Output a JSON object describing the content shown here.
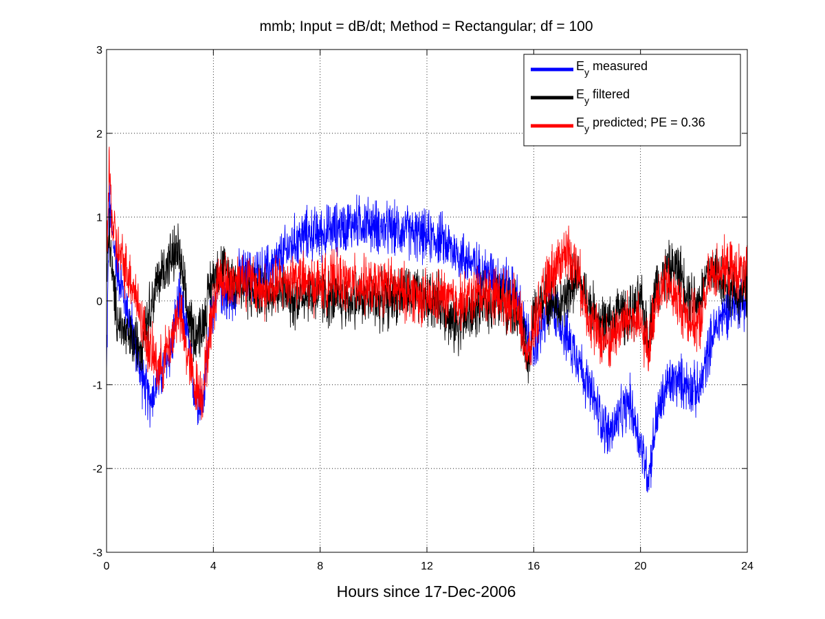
{
  "chart_data": {
    "type": "line",
    "title": "mmb; Input = dB/dt; Method = Rectangular; df = 100",
    "xlabel": "Hours since 17-Dec-2006",
    "ylabel": "",
    "xlim": [
      0,
      24
    ],
    "ylim": [
      -3,
      3
    ],
    "xticks": [
      0,
      4,
      8,
      12,
      16,
      20,
      24
    ],
    "yticks": [
      -3,
      -2,
      -1,
      0,
      1,
      2,
      3
    ],
    "xtick_labels": [
      "0",
      "4",
      "8",
      "12",
      "16",
      "20",
      "24"
    ],
    "ytick_labels": [
      "-3",
      "-2",
      "-1",
      "0",
      "1",
      "2",
      "3"
    ],
    "grid": true,
    "grid_style": "dotted",
    "legend_position": "top-right",
    "series": [
      {
        "name_main": "E",
        "name_sub": "y",
        "name_rest": " measured",
        "color": "#0000ff",
        "noise": 0.28,
        "x": [
          0,
          0.1,
          0.2,
          0.4,
          0.7,
          1.0,
          1.3,
          1.6,
          2.0,
          2.4,
          2.7,
          3.0,
          3.3,
          3.6,
          3.9,
          4.2,
          4.6,
          5.0,
          5.5,
          6.0,
          6.5,
          7.0,
          7.5,
          8.0,
          8.5,
          9.0,
          9.5,
          10.0,
          10.5,
          11.0,
          11.5,
          12.0,
          12.5,
          13.0,
          13.5,
          14.0,
          14.5,
          15.0,
          15.4,
          15.8,
          16.0,
          16.3,
          16.6,
          17.0,
          17.3,
          17.6,
          18.0,
          18.4,
          18.8,
          19.2,
          19.6,
          20.0,
          20.3,
          20.6,
          21.0,
          21.4,
          21.8,
          22.2,
          22.6,
          23.0,
          23.5,
          24.0
        ],
        "y": [
          -0.9,
          1.2,
          0.8,
          0.4,
          0.0,
          -0.4,
          -0.9,
          -1.2,
          -0.9,
          -0.6,
          0.0,
          -0.3,
          -1.1,
          -1.2,
          -0.2,
          0.2,
          0.0,
          0.3,
          0.3,
          0.35,
          0.5,
          0.7,
          0.8,
          0.8,
          0.85,
          0.9,
          0.95,
          0.9,
          0.85,
          0.85,
          0.8,
          0.75,
          0.75,
          0.6,
          0.5,
          0.35,
          0.3,
          0.2,
          0.0,
          -0.5,
          -0.6,
          -0.3,
          -0.1,
          -0.2,
          -0.5,
          -0.6,
          -1.0,
          -1.3,
          -1.6,
          -1.4,
          -1.2,
          -1.7,
          -2.1,
          -1.4,
          -1.0,
          -0.95,
          -1.0,
          -1.1,
          -0.5,
          -0.2,
          0.0,
          0.0
        ]
      },
      {
        "name_main": "E",
        "name_sub": "y",
        "name_rest": " filtered",
        "color": "#000000",
        "noise": 0.3,
        "x": [
          0,
          0.1,
          0.2,
          0.4,
          0.7,
          1.0,
          1.3,
          1.6,
          2.0,
          2.4,
          2.7,
          3.0,
          3.3,
          3.6,
          3.9,
          4.2,
          4.6,
          5.0,
          5.5,
          6.0,
          6.5,
          7.0,
          7.5,
          8.0,
          8.5,
          9.0,
          9.5,
          10.0,
          10.5,
          11.0,
          11.5,
          12.0,
          12.5,
          13.0,
          13.5,
          14.0,
          14.5,
          15.0,
          15.4,
          15.8,
          16.0,
          16.3,
          16.6,
          17.0,
          17.3,
          17.6,
          18.0,
          18.4,
          18.8,
          19.2,
          19.6,
          20.0,
          20.3,
          20.6,
          21.0,
          21.4,
          21.8,
          22.2,
          22.6,
          23.0,
          23.5,
          24.0
        ],
        "y": [
          0.2,
          0.9,
          0.3,
          -0.2,
          -0.4,
          -0.5,
          -0.5,
          -0.1,
          0.3,
          0.5,
          0.6,
          -0.1,
          -0.4,
          -0.3,
          0.2,
          0.4,
          0.3,
          0.2,
          0.1,
          0.1,
          0.15,
          0.0,
          0.1,
          0.05,
          0.0,
          0.0,
          0.05,
          0.0,
          0.0,
          0.1,
          0.05,
          0.0,
          0.0,
          -0.3,
          -0.2,
          -0.05,
          0.0,
          0.0,
          -0.1,
          -0.8,
          -0.2,
          0.05,
          0.0,
          -0.1,
          0.1,
          0.3,
          0.0,
          -0.2,
          -0.3,
          -0.1,
          -0.2,
          0.0,
          -0.4,
          0.2,
          0.35,
          0.4,
          0.1,
          0.0,
          0.4,
          0.3,
          0.1,
          0.1
        ]
      },
      {
        "name_main": "E",
        "name_sub": "y",
        "name_rest": " predicted; PE = 0.36",
        "color": "#ff0000",
        "noise": 0.3,
        "x": [
          0,
          0.1,
          0.2,
          0.4,
          0.7,
          1.0,
          1.3,
          1.6,
          2.0,
          2.4,
          2.7,
          3.0,
          3.3,
          3.6,
          3.9,
          4.2,
          4.6,
          5.0,
          5.5,
          6.0,
          6.5,
          7.0,
          7.5,
          8.0,
          8.5,
          9.0,
          9.5,
          10.0,
          10.5,
          11.0,
          11.5,
          12.0,
          12.5,
          13.0,
          13.5,
          14.0,
          14.5,
          15.0,
          15.4,
          15.8,
          16.0,
          16.3,
          16.6,
          17.0,
          17.3,
          17.6,
          18.0,
          18.4,
          18.8,
          19.2,
          19.6,
          20.0,
          20.3,
          20.6,
          21.0,
          21.4,
          21.8,
          22.2,
          22.6,
          23.0,
          23.5,
          24.0
        ],
        "y": [
          0.5,
          1.6,
          1.0,
          0.6,
          0.4,
          0.2,
          -0.2,
          -0.6,
          -0.8,
          -0.5,
          -0.1,
          -0.6,
          -1.0,
          -1.1,
          -0.3,
          0.3,
          0.2,
          0.3,
          0.2,
          0.1,
          0.2,
          0.3,
          0.2,
          0.2,
          0.25,
          0.2,
          0.2,
          0.15,
          0.2,
          0.1,
          0.1,
          0.0,
          0.05,
          0.0,
          0.0,
          0.1,
          0.1,
          0.0,
          -0.1,
          -0.7,
          -0.3,
          0.0,
          0.3,
          0.5,
          0.6,
          0.4,
          -0.1,
          -0.4,
          -0.5,
          -0.3,
          -0.2,
          -0.3,
          -0.6,
          0.1,
          0.2,
          0.0,
          -0.2,
          -0.3,
          0.3,
          0.4,
          0.35,
          0.3
        ]
      }
    ]
  }
}
